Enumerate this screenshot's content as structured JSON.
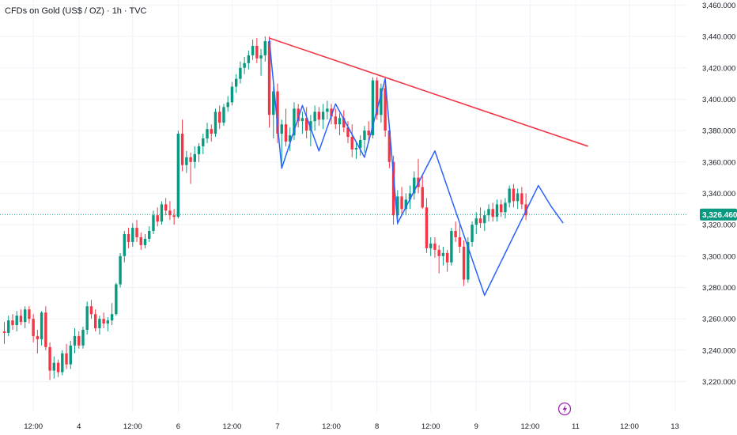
{
  "header": {
    "title": "CFDs on Gold (US$ / OZ) · 1h · TVC"
  },
  "colors": {
    "up": "#089981",
    "down": "#f23645",
    "trendline": "#f23645",
    "zigzag": "#2962ff",
    "price_label": "#089981",
    "grid": "#f0f3fa"
  },
  "icons": {
    "event_marker": "lightning-icon"
  },
  "chart_data": {
    "type": "candlestick",
    "title": "CFDs on Gold (US$ / OZ) · 1h · TVC",
    "ylim": [
      3210,
      3465
    ],
    "y_ticks": [
      "3,460.000",
      "3,440.000",
      "3,420.000",
      "3,400.000",
      "3,380.000",
      "3,360.000",
      "3,340.000",
      "3,320.000",
      "3,300.000",
      "3,280.000",
      "3,260.000",
      "3,240.000",
      "3,220.000"
    ],
    "y_tick_values": [
      3460,
      3440,
      3420,
      3400,
      3380,
      3360,
      3340,
      3320,
      3300,
      3280,
      3260,
      3240,
      3220
    ],
    "x_ticks": [
      "12:00",
      "4",
      "12:00",
      "6",
      "12:00",
      "7",
      "12:00",
      "8",
      "12:00",
      "9",
      "12:00",
      "11",
      "12:00",
      "13"
    ],
    "x_tick_index": [
      7,
      18,
      31,
      42,
      55,
      66,
      79,
      90,
      103,
      114,
      127,
      138,
      151,
      162
    ],
    "current_price": {
      "value": 3326.46,
      "label": "3,326.460"
    },
    "trendline": [
      {
        "i": 64,
        "price": 3439
      },
      {
        "i": 141,
        "price": 3370
      }
    ],
    "zigzag": [
      {
        "i": 64,
        "price": 3438
      },
      {
        "i": 67,
        "price": 3356
      },
      {
        "i": 72,
        "price": 3396
      },
      {
        "i": 76,
        "price": 3367
      },
      {
        "i": 80,
        "price": 3397
      },
      {
        "i": 87,
        "price": 3363
      },
      {
        "i": 92,
        "price": 3413
      },
      {
        "i": 95,
        "price": 3321
      },
      {
        "i": 104,
        "price": 3367
      },
      {
        "i": 116,
        "price": 3275
      },
      {
        "i": 129,
        "price": 3345
      },
      {
        "i": 132,
        "price": 3332
      },
      {
        "i": 135,
        "price": 3321
      }
    ],
    "candles": [
      [
        3252,
        3258,
        3244,
        3251
      ],
      [
        3251,
        3262,
        3249,
        3259
      ],
      [
        3259,
        3263,
        3253,
        3256
      ],
      [
        3256,
        3265,
        3252,
        3262
      ],
      [
        3262,
        3266,
        3256,
        3258
      ],
      [
        3258,
        3268,
        3254,
        3266
      ],
      [
        3266,
        3268,
        3257,
        3260
      ],
      [
        3260,
        3263,
        3245,
        3249
      ],
      [
        3249,
        3253,
        3238,
        3247
      ],
      [
        3247,
        3265,
        3243,
        3264
      ],
      [
        3264,
        3268,
        3240,
        3242
      ],
      [
        3242,
        3245,
        3221,
        3227
      ],
      [
        3227,
        3236,
        3222,
        3232
      ],
      [
        3232,
        3234,
        3223,
        3226
      ],
      [
        3226,
        3240,
        3224,
        3238
      ],
      [
        3238,
        3244,
        3228,
        3231
      ],
      [
        3231,
        3246,
        3228,
        3243
      ],
      [
        3243,
        3254,
        3238,
        3249
      ],
      [
        3249,
        3252,
        3241,
        3243
      ],
      [
        3243,
        3255,
        3241,
        3253
      ],
      [
        3253,
        3271,
        3250,
        3268
      ],
      [
        3268,
        3272,
        3260,
        3263
      ],
      [
        3263,
        3266,
        3252,
        3254
      ],
      [
        3254,
        3262,
        3250,
        3260
      ],
      [
        3260,
        3264,
        3254,
        3257
      ],
      [
        3257,
        3261,
        3252,
        3259
      ],
      [
        3259,
        3270,
        3256,
        3263
      ],
      [
        3263,
        3283,
        3262,
        3282
      ],
      [
        3282,
        3302,
        3280,
        3300
      ],
      [
        3300,
        3316,
        3296,
        3314
      ],
      [
        3314,
        3318,
        3305,
        3309
      ],
      [
        3309,
        3321,
        3306,
        3318
      ],
      [
        3318,
        3323,
        3309,
        3312
      ],
      [
        3312,
        3315,
        3304,
        3307
      ],
      [
        3307,
        3314,
        3305,
        3311
      ],
      [
        3311,
        3319,
        3309,
        3316
      ],
      [
        3316,
        3329,
        3314,
        3326
      ],
      [
        3326,
        3331,
        3319,
        3322
      ],
      [
        3322,
        3335,
        3320,
        3333
      ],
      [
        3333,
        3337,
        3326,
        3329
      ],
      [
        3329,
        3335,
        3323,
        3326
      ],
      [
        3326,
        3330,
        3320,
        3325
      ],
      [
        3325,
        3380,
        3324,
        3378
      ],
      [
        3378,
        3387,
        3354,
        3358
      ],
      [
        3358,
        3367,
        3353,
        3363
      ],
      [
        3363,
        3366,
        3346,
        3360
      ],
      [
        3360,
        3370,
        3356,
        3365
      ],
      [
        3365,
        3372,
        3360,
        3370
      ],
      [
        3370,
        3378,
        3365,
        3375
      ],
      [
        3375,
        3385,
        3372,
        3381
      ],
      [
        3381,
        3384,
        3373,
        3378
      ],
      [
        3378,
        3394,
        3376,
        3392
      ],
      [
        3392,
        3396,
        3381,
        3385
      ],
      [
        3385,
        3397,
        3383,
        3395
      ],
      [
        3395,
        3402,
        3392,
        3398
      ],
      [
        3398,
        3411,
        3396,
        3408
      ],
      [
        3408,
        3416,
        3404,
        3413
      ],
      [
        3413,
        3424,
        3410,
        3420
      ],
      [
        3420,
        3427,
        3416,
        3423
      ],
      [
        3423,
        3431,
        3419,
        3428
      ],
      [
        3428,
        3438,
        3425,
        3434
      ],
      [
        3434,
        3439,
        3423,
        3426
      ],
      [
        3426,
        3432,
        3415,
        3428
      ],
      [
        3428,
        3440,
        3424,
        3437
      ],
      [
        3437,
        3440,
        3382,
        3390
      ],
      [
        3390,
        3408,
        3375,
        3405
      ],
      [
        3405,
        3410,
        3372,
        3378
      ],
      [
        3378,
        3387,
        3356,
        3384
      ],
      [
        3384,
        3394,
        3370,
        3373
      ],
      [
        3373,
        3382,
        3367,
        3377
      ],
      [
        3377,
        3398,
        3374,
        3394
      ],
      [
        3394,
        3397,
        3382,
        3386
      ],
      [
        3386,
        3392,
        3378,
        3388
      ],
      [
        3388,
        3395,
        3375,
        3380
      ],
      [
        3380,
        3390,
        3370,
        3386
      ],
      [
        3386,
        3396,
        3380,
        3392
      ],
      [
        3392,
        3395,
        3383,
        3387
      ],
      [
        3387,
        3397,
        3381,
        3392
      ],
      [
        3392,
        3399,
        3387,
        3394
      ],
      [
        3394,
        3397,
        3384,
        3389
      ],
      [
        3389,
        3394,
        3381,
        3384
      ],
      [
        3384,
        3391,
        3377,
        3388
      ],
      [
        3388,
        3393,
        3379,
        3382
      ],
      [
        3382,
        3386,
        3372,
        3376
      ],
      [
        3376,
        3384,
        3363,
        3368
      ],
      [
        3368,
        3373,
        3362,
        3369
      ],
      [
        3369,
        3377,
        3364,
        3374
      ],
      [
        3374,
        3383,
        3366,
        3380
      ],
      [
        3380,
        3386,
        3372,
        3377
      ],
      [
        3377,
        3414,
        3375,
        3412
      ],
      [
        3412,
        3414,
        3387,
        3390
      ],
      [
        3390,
        3410,
        3385,
        3407
      ],
      [
        3407,
        3410,
        3376,
        3380
      ],
      [
        3380,
        3382,
        3356,
        3360
      ],
      [
        3360,
        3364,
        3320,
        3326
      ],
      [
        3326,
        3342,
        3320,
        3338
      ],
      [
        3338,
        3344,
        3327,
        3330
      ],
      [
        3330,
        3340,
        3326,
        3336
      ],
      [
        3336,
        3345,
        3330,
        3340
      ],
      [
        3340,
        3354,
        3336,
        3350
      ],
      [
        3350,
        3362,
        3340,
        3344
      ],
      [
        3344,
        3352,
        3330,
        3331
      ],
      [
        3331,
        3337,
        3302,
        3305
      ],
      [
        3305,
        3312,
        3300,
        3308
      ],
      [
        3308,
        3312,
        3299,
        3304
      ],
      [
        3304,
        3307,
        3289,
        3300
      ],
      [
        3300,
        3306,
        3294,
        3302
      ],
      [
        3302,
        3304,
        3290,
        3296
      ],
      [
        3296,
        3318,
        3294,
        3316
      ],
      [
        3316,
        3322,
        3309,
        3312
      ],
      [
        3312,
        3320,
        3302,
        3306
      ],
      [
        3306,
        3310,
        3281,
        3285
      ],
      [
        3285,
        3312,
        3283,
        3309
      ],
      [
        3309,
        3322,
        3306,
        3320
      ],
      [
        3320,
        3328,
        3314,
        3324
      ],
      [
        3324,
        3331,
        3318,
        3321
      ],
      [
        3321,
        3329,
        3316,
        3326
      ],
      [
        3326,
        3333,
        3322,
        3330
      ],
      [
        3330,
        3334,
        3322,
        3325
      ],
      [
        3325,
        3336,
        3322,
        3333
      ],
      [
        3333,
        3336,
        3325,
        3328
      ],
      [
        3328,
        3337,
        3324,
        3334
      ],
      [
        3334,
        3345,
        3331,
        3343
      ],
      [
        3343,
        3346,
        3331,
        3335
      ],
      [
        3335,
        3343,
        3330,
        3340
      ],
      [
        3340,
        3344,
        3330,
        3333
      ],
      [
        3333,
        3340,
        3323,
        3326
      ]
    ]
  }
}
